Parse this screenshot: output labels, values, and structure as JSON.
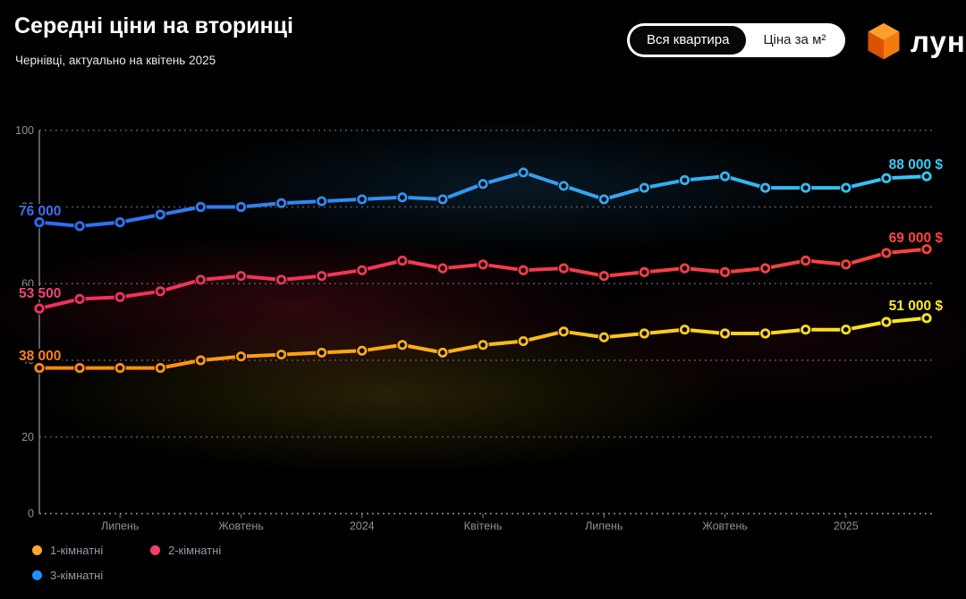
{
  "header": {
    "title": "Середні ціни на вторинці",
    "subtitle": "Чернівці, актуально на квітень 2025"
  },
  "toggle": {
    "selected_label": "Вся квартира",
    "other_label": "Ціна за м²"
  },
  "logo": {
    "text": "лун",
    "cube_top": "#ff9e2e",
    "cube_left": "#db5207",
    "cube_right": "#f57a0e"
  },
  "chart_data": {
    "type": "line",
    "title": "Середні ціни на вторинці",
    "subtitle": "Чернівці, актуально на квітень 2025",
    "currency": "$",
    "value_scale": 1000,
    "ylim": [
      0,
      100
    ],
    "y_ticks": [
      100,
      80,
      60,
      40,
      20,
      0
    ],
    "x_axis_labels": [
      "Липень",
      "Жовтень",
      "2024",
      "Квітень",
      "Липень",
      "Жовтень",
      "2025"
    ],
    "x_label_indices": [
      2,
      5,
      8,
      11,
      14,
      17,
      20
    ],
    "grid": "dotted-horizontal",
    "legend_position": "bottom-left",
    "series": [
      {
        "name": "1-кімнатні",
        "gradient": [
          "#ff850a",
          "#ffe81f"
        ],
        "legend_color": "#ffa726",
        "start_label": "38 000",
        "end_label": "51 000 $",
        "badge_start_color": "#ff7e22",
        "badge_end_color": "#ffe92e",
        "values": [
          38,
          38,
          38,
          38,
          40,
          41,
          41.5,
          42,
          42.5,
          44,
          42,
          44,
          45,
          47.5,
          46,
          47,
          48,
          47,
          47,
          48,
          48,
          50,
          51
        ]
      },
      {
        "name": "2-кімнатні",
        "gradient": [
          "#f42e63",
          "#f64438"
        ],
        "legend_color": "#f63d68",
        "start_label": "53 500",
        "end_label": "69 000 $",
        "badge_start_color": "#f4447c",
        "badge_end_color": "#fd463c",
        "values": [
          53.5,
          56,
          56.5,
          58,
          61,
          62,
          61,
          62,
          63.5,
          66,
          64,
          65,
          63.5,
          64,
          62,
          63,
          64,
          63,
          64,
          66,
          65,
          68,
          69
        ]
      },
      {
        "name": "3-кімнатні",
        "gradient": [
          "#2e6bf2",
          "#35c9f2"
        ],
        "legend_color": "#1e90ff",
        "start_label": "76 000",
        "end_label": "88 000 $",
        "badge_start_color": "#3d6ff5",
        "badge_end_color": "#38c9f5",
        "values": [
          76,
          75,
          76,
          78,
          80,
          80,
          81,
          81.5,
          82,
          82.5,
          82,
          86,
          89,
          85.5,
          82,
          85,
          87,
          88,
          85,
          85,
          85,
          87.5,
          88
        ]
      }
    ]
  }
}
